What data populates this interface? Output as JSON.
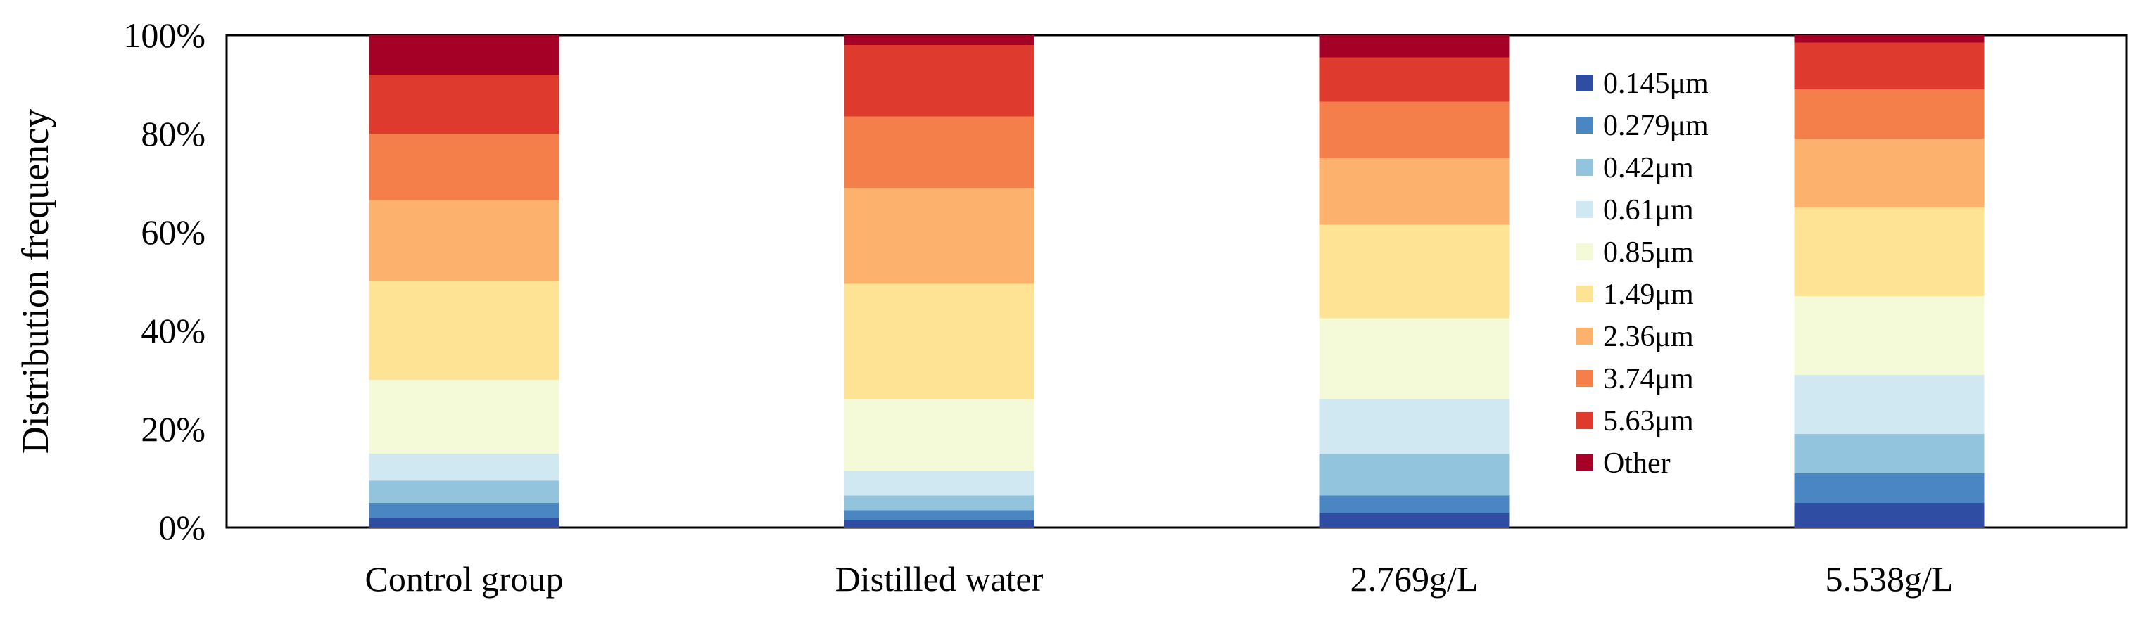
{
  "chart_data": {
    "type": "bar",
    "stacked": true,
    "normalized": true,
    "title": "",
    "xlabel": "",
    "ylabel": "Distribution  frequency",
    "ylim": [
      0,
      100
    ],
    "yticks": [
      "0%",
      "20%",
      "40%",
      "60%",
      "80%",
      "100%"
    ],
    "grid": false,
    "legend_position": "inside top-right",
    "categories": [
      "Control group",
      "Distilled water",
      "2.769g/L",
      "5.538g/L"
    ],
    "series": [
      {
        "name": "0.145μm",
        "color": "#2f4ea3",
        "values": [
          2,
          1.5,
          3,
          5
        ]
      },
      {
        "name": "0.279μm",
        "color": "#4a86c2",
        "values": [
          3,
          2,
          3.5,
          6
        ]
      },
      {
        "name": "0.42μm",
        "color": "#93c4de",
        "values": [
          4.5,
          3,
          8.5,
          8
        ]
      },
      {
        "name": "0.61μm",
        "color": "#cfe8f2",
        "values": [
          5.5,
          5,
          11,
          12
        ]
      },
      {
        "name": "0.85μm",
        "color": "#f4f9d8",
        "values": [
          15,
          14.5,
          16.5,
          16
        ]
      },
      {
        "name": "1.49μm",
        "color": "#fee395",
        "values": [
          20,
          23.5,
          19,
          18
        ]
      },
      {
        "name": "2.36μm",
        "color": "#fcb16d",
        "values": [
          16.5,
          19.5,
          13.5,
          14
        ]
      },
      {
        "name": "3.74μm",
        "color": "#f57f4b",
        "values": [
          13.5,
          14.5,
          11.5,
          10
        ]
      },
      {
        "name": "5.63μm",
        "color": "#de3a2e",
        "values": [
          12,
          14.5,
          9,
          9.5
        ]
      },
      {
        "name": "Other",
        "color": "#a50025",
        "values": [
          8,
          2,
          4.5,
          1.5
        ]
      }
    ]
  }
}
